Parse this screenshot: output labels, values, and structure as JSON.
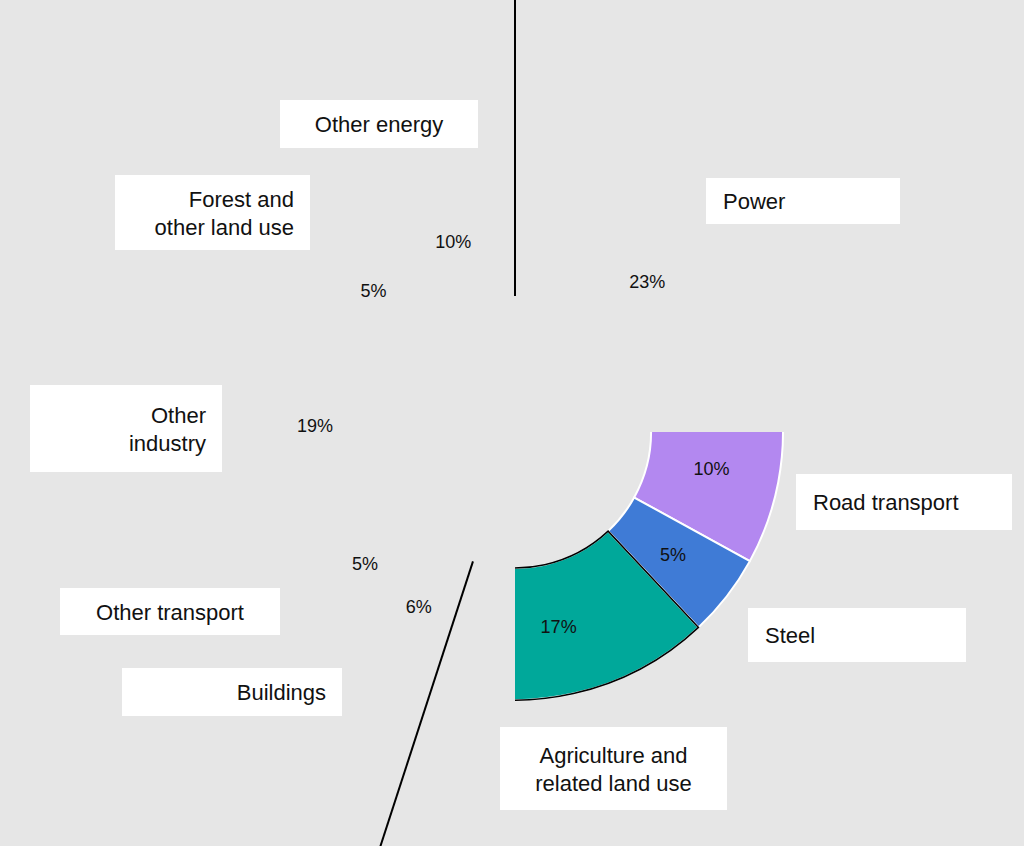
{
  "chart_data": {
    "type": "donut",
    "categories": [
      "Power",
      "Road transport",
      "Steel",
      "Agriculture and related land use",
      "Buildings",
      "Other transport",
      "Other industry",
      "Forest and other land use",
      "Other energy"
    ],
    "values": [
      23,
      10,
      5,
      17,
      6,
      5,
      19,
      5,
      10
    ],
    "value_labels": [
      "23%",
      "10%",
      "5%",
      "17%",
      "6%",
      "5%",
      "19%",
      "5%",
      "10%"
    ],
    "colors": [
      "#fdd22b",
      "#b388f0",
      "#3f7bd6",
      "#00a89a",
      "#e89a98",
      "#cdb8ec",
      "#90afe0",
      "#76cdc6",
      "#ecc477"
    ],
    "data_labels": true
  }
}
